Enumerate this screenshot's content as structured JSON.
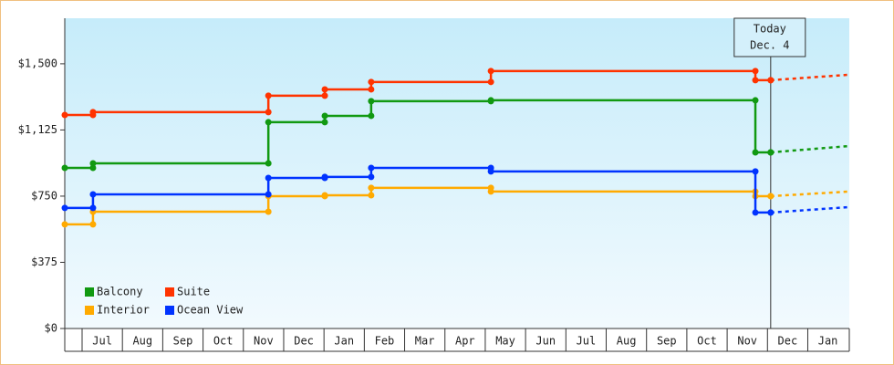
{
  "chart_data": {
    "type": "step-line",
    "categories": [
      "Jul",
      "Aug",
      "Sep",
      "Oct",
      "Nov",
      "Dec",
      "Jan",
      "Feb",
      "Mar",
      "Apr",
      "May",
      "Jun",
      "Jul",
      "Aug",
      "Sep",
      "Oct",
      "Nov",
      "Dec",
      "Jan"
    ],
    "x": [
      -0.43,
      0.27,
      4.62,
      6.02,
      7.17,
      10.14,
      16.7,
      17.08
    ],
    "forecast_x": 19.03,
    "series": [
      {
        "name": "Balcony",
        "color": "#119911",
        "values": [
          910,
          936,
          1169,
          1205,
          1288,
          1293,
          998,
          998
        ],
        "forecast": 1034
      },
      {
        "name": "Suite",
        "color": "#ff3300",
        "values": [
          1210,
          1226,
          1319,
          1355,
          1397,
          1459,
          1407,
          1407
        ],
        "forecast": 1438
      },
      {
        "name": "Interior",
        "color": "#ffaa00",
        "values": [
          590,
          662,
          750,
          755,
          797,
          776,
          750,
          750
        ],
        "forecast": 776
      },
      {
        "name": "Ocean View",
        "color": "#0033ff",
        "values": [
          683,
          760,
          853,
          859,
          910,
          890,
          657,
          657
        ],
        "forecast": 688
      }
    ],
    "today_label": "Today",
    "today_date": "Dec. 4",
    "today_x": 17.08,
    "xlim": [
      -0.43,
      19.03
    ],
    "ylim": [
      0,
      1758
    ],
    "yticks": [
      {
        "value": 0,
        "label": "$0"
      },
      {
        "value": 375,
        "label": "$375"
      },
      {
        "value": 750,
        "label": "$750"
      },
      {
        "value": 1125,
        "label": "$1,125"
      },
      {
        "value": 1500,
        "label": "$1,500"
      }
    ]
  }
}
